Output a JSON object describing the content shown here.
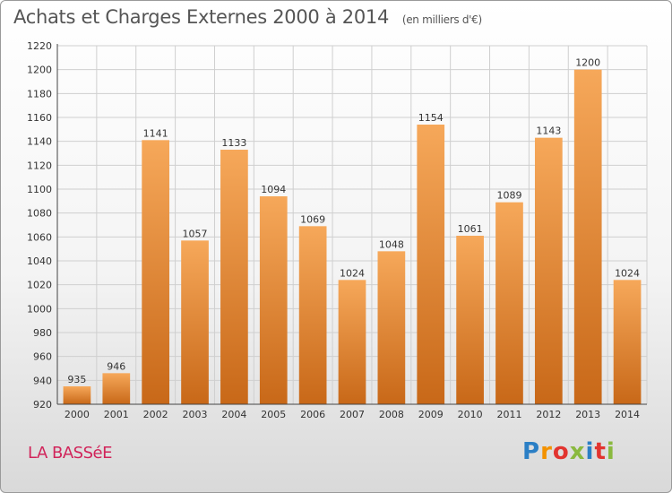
{
  "title": "Achats et Charges Externes 2000 à 2014",
  "unit_note": "(en milliers d'€)",
  "commune": "LA BASSéE",
  "brand": {
    "letters": [
      "P",
      "r",
      "o",
      "x",
      "i",
      "t",
      "i"
    ],
    "colors": [
      "#2b7fc5",
      "#f39200",
      "#e2342f",
      "#8ab93f",
      "#2b7fc5",
      "#e2342f",
      "#8ab93f"
    ]
  },
  "colors": {
    "bar_light": "#f6a85a",
    "bar_dark": "#c86818",
    "grid": "#cfcfcf",
    "text": "#333333"
  },
  "chart_data": {
    "type": "bar",
    "categories": [
      "2000",
      "2001",
      "2002",
      "2003",
      "2004",
      "2005",
      "2006",
      "2007",
      "2008",
      "2009",
      "2010",
      "2011",
      "2012",
      "2013",
      "2014"
    ],
    "values": [
      935,
      946,
      1141,
      1057,
      1133,
      1094,
      1069,
      1024,
      1048,
      1154,
      1061,
      1089,
      1143,
      1200,
      1024
    ],
    "ylim": [
      920,
      1220
    ],
    "yticks": [
      920,
      940,
      960,
      980,
      1000,
      1020,
      1040,
      1060,
      1080,
      1100,
      1120,
      1140,
      1160,
      1180,
      1200,
      1220
    ],
    "grid": true,
    "xlabel": "",
    "ylabel": ""
  }
}
